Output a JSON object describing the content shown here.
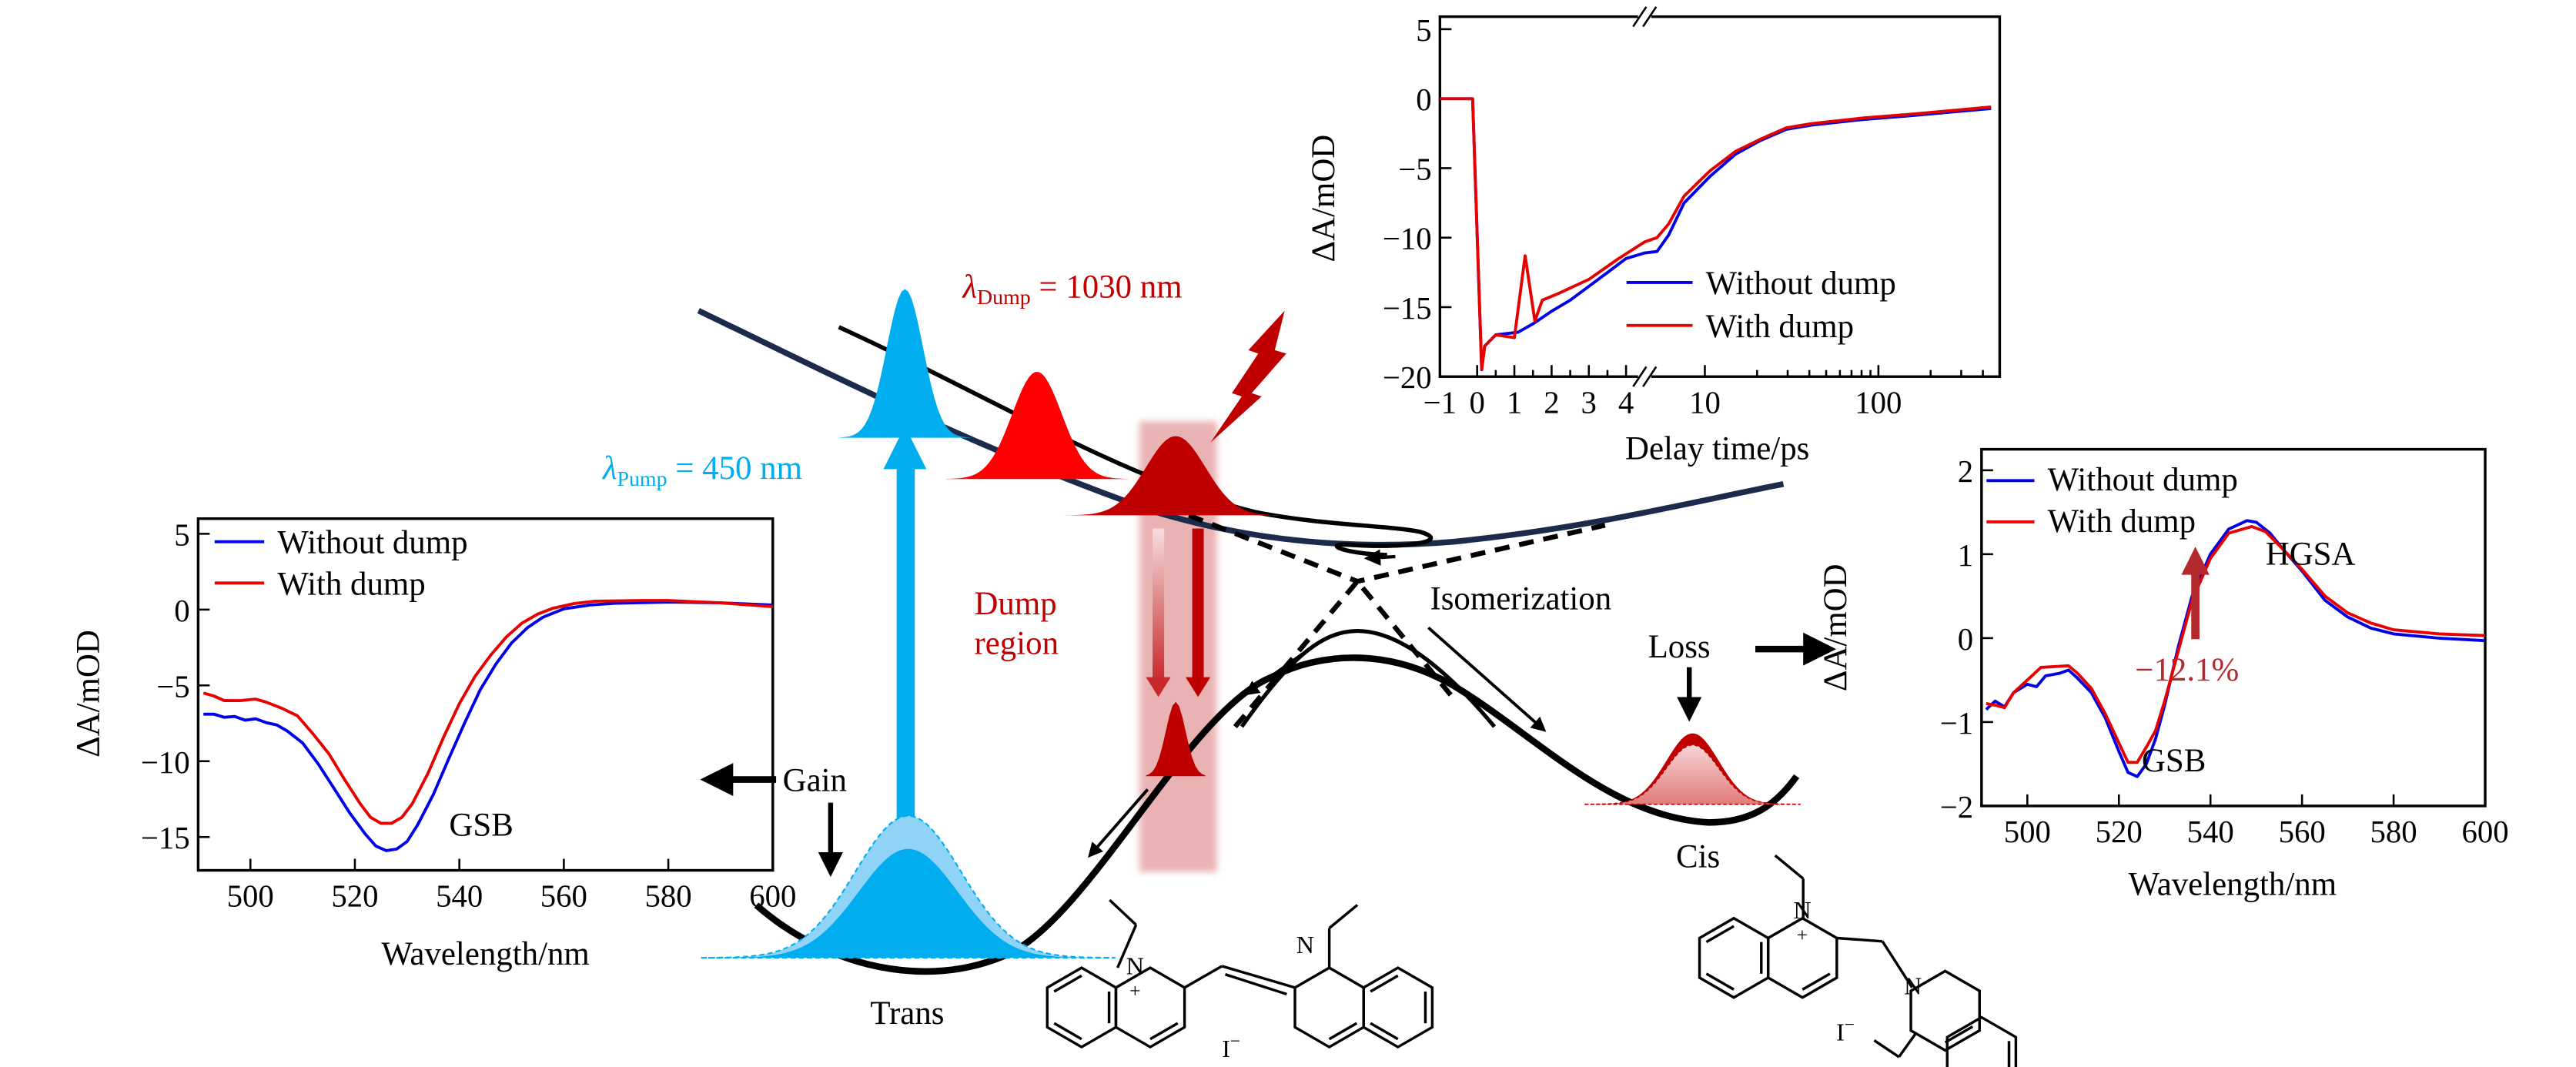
{
  "colors": {
    "blue_series": "#0000e6",
    "red_series": "#e60000",
    "pump": "#00aeef",
    "pump_light": "#8fd3f7",
    "dump": "#c00000",
    "dump_bright": "#ff0000",
    "dump_region": "#e8abab",
    "excited_curve": "#1c2b4b",
    "annotation_red": "#b5282c"
  },
  "legend": {
    "without": "Without dump",
    "with": "With dump"
  },
  "chart_data": [
    {
      "id": "left-spectrum",
      "type": "line",
      "xlabel": "Wavelength/nm",
      "ylabel": "ΔA/mOD",
      "xlim": [
        490,
        600
      ],
      "ylim": [
        -17.2,
        6
      ],
      "xticks": [
        500,
        520,
        540,
        560,
        580,
        600
      ],
      "xtick_labels": [
        "500",
        "520",
        "540",
        "560",
        "580",
        "600"
      ],
      "yticks": [
        5,
        0,
        -5,
        -10,
        -15
      ],
      "ytick_labels": [
        "5",
        "0",
        "−5",
        "−10",
        "−15"
      ],
      "legend_position": "top-left",
      "annotations": [
        "GSB"
      ],
      "series": [
        {
          "name": "Without dump",
          "color": "#0000e6",
          "x": [
            491,
            493,
            495,
            497,
            499,
            501,
            503,
            505,
            507,
            510,
            513,
            516,
            519,
            522,
            524,
            526,
            528,
            530,
            532,
            535,
            538,
            541,
            544,
            547,
            550,
            553,
            556,
            560,
            565,
            570,
            580,
            590,
            600
          ],
          "y": [
            -6.9,
            -6.9,
            -7.1,
            -7.05,
            -7.3,
            -7.2,
            -7.45,
            -7.6,
            -8.0,
            -8.8,
            -10.2,
            -11.8,
            -13.4,
            -14.8,
            -15.6,
            -15.9,
            -15.8,
            -15.3,
            -14.2,
            -12.2,
            -9.8,
            -7.5,
            -5.3,
            -3.6,
            -2.2,
            -1.2,
            -0.5,
            0.05,
            0.3,
            0.42,
            0.5,
            0.45,
            0.3
          ]
        },
        {
          "name": "With dump",
          "color": "#e60000",
          "x": [
            491,
            493,
            495,
            498,
            501,
            503,
            506,
            509,
            512,
            515,
            518,
            521,
            523,
            525,
            527,
            529,
            531,
            534,
            537,
            540,
            543,
            546,
            549,
            552,
            555,
            558,
            562,
            566,
            575,
            580,
            590,
            600
          ],
          "y": [
            -5.5,
            -5.7,
            -6.0,
            -6.0,
            -5.9,
            -6.1,
            -6.5,
            -7.0,
            -8.2,
            -9.5,
            -11.2,
            -12.8,
            -13.7,
            -14.1,
            -14.1,
            -13.7,
            -12.8,
            -10.8,
            -8.4,
            -6.2,
            -4.4,
            -3.0,
            -1.8,
            -0.9,
            -0.3,
            0.1,
            0.4,
            0.55,
            0.6,
            0.6,
            0.45,
            0.2
          ]
        }
      ]
    },
    {
      "id": "kinetics",
      "type": "line",
      "xlabel": "Delay time/ps",
      "ylabel": "ΔA/mOD",
      "x_scale": "broken axis: linear then log",
      "xlim_linear": [
        -1,
        4.5
      ],
      "xlim_log": [
        4.5,
        500
      ],
      "ylim": [
        -20,
        5.9
      ],
      "xticks": [
        -1,
        0,
        1,
        2,
        3,
        4,
        10,
        100
      ],
      "xtick_labels": [
        "−1",
        "0",
        "1",
        "2",
        "3",
        "4",
        "10",
        "100"
      ],
      "yticks": [
        5,
        0,
        -5,
        -10,
        -15,
        -20
      ],
      "ytick_labels": [
        "5",
        "0",
        "−5",
        "−10",
        "−15",
        "−20"
      ],
      "legend_position": "bottom-right",
      "series": [
        {
          "name": "Without dump",
          "color": "#0000e6",
          "x": [
            -1,
            -0.5,
            -0.12,
            0.12,
            0.2,
            0.5,
            1.1,
            1.5,
            2,
            2.5,
            3,
            3.5,
            4,
            4.5,
            5.3,
            6.2,
            7.6,
            10.7,
            15,
            21,
            29.5,
            41,
            81,
            160,
            446
          ],
          "y": [
            0,
            0,
            0,
            -19.5,
            -17.8,
            -17,
            -16.8,
            -16.2,
            -15.3,
            -14.5,
            -13.5,
            -12.5,
            -11.5,
            -11.1,
            -11,
            -9.8,
            -7.5,
            -5.6,
            -4,
            -3,
            -2.2,
            -1.9,
            -1.5,
            -1.2,
            -0.7
          ]
        },
        {
          "name": "With dump",
          "color": "#e60000",
          "x": [
            -1,
            -0.5,
            -0.12,
            0.12,
            0.2,
            0.5,
            1.0,
            1.29,
            1.55,
            1.75,
            2.2,
            3,
            3.8,
            4.5,
            5.3,
            6.2,
            7.6,
            10.7,
            15,
            21,
            29.5,
            41,
            81,
            160,
            446
          ],
          "y": [
            0,
            0,
            0,
            -19.5,
            -17.8,
            -17,
            -17.2,
            -11.3,
            -16,
            -14.5,
            -14,
            -13,
            -11.5,
            -10.3,
            -10,
            -9,
            -7,
            -5.2,
            -3.8,
            -2.9,
            -2.1,
            -1.8,
            -1.4,
            -1.1,
            -0.6
          ]
        }
      ]
    },
    {
      "id": "right-spectrum",
      "type": "line",
      "xlabel": "Wavelength/nm",
      "ylabel": "ΔA/mOD",
      "xlim": [
        490,
        600
      ],
      "ylim": [
        -2,
        2.25
      ],
      "xticks": [
        500,
        520,
        540,
        560,
        580,
        600
      ],
      "xtick_labels": [
        "500",
        "520",
        "540",
        "560",
        "580",
        "600"
      ],
      "yticks": [
        2,
        1,
        0,
        -1,
        -2
      ],
      "ytick_labels": [
        "2",
        "1",
        "0",
        "−1",
        "−2"
      ],
      "legend_position": "top-left",
      "annotations": [
        "HGSA",
        "GSB",
        "−12.1%"
      ],
      "series": [
        {
          "name": "Without dump",
          "color": "#0000e6",
          "x": [
            491,
            493,
            495,
            497,
            500,
            502,
            504,
            507,
            509,
            511,
            514,
            517,
            520,
            522,
            524,
            526,
            528,
            530,
            533,
            536,
            540,
            544,
            548,
            550,
            553,
            556,
            560,
            565,
            570,
            575,
            580,
            590,
            600
          ],
          "y": [
            -0.85,
            -0.75,
            -0.82,
            -0.65,
            -0.55,
            -0.58,
            -0.45,
            -0.42,
            -0.38,
            -0.48,
            -0.65,
            -0.95,
            -1.35,
            -1.6,
            -1.65,
            -1.5,
            -1.2,
            -0.8,
            -0.1,
            0.5,
            1.0,
            1.3,
            1.4,
            1.38,
            1.25,
            1.05,
            0.8,
            0.45,
            0.25,
            0.12,
            0.05,
            0.0,
            -0.03
          ]
        },
        {
          "name": "With dump",
          "color": "#e60000",
          "x": [
            491,
            493,
            495,
            497,
            500,
            503,
            506,
            509,
            511,
            514,
            517,
            520,
            522,
            524,
            526,
            528,
            530,
            533,
            536,
            540,
            544,
            549,
            552,
            556,
            560,
            565,
            570,
            575,
            580,
            590,
            600
          ],
          "y": [
            -0.78,
            -0.8,
            -0.83,
            -0.65,
            -0.5,
            -0.35,
            -0.34,
            -0.33,
            -0.42,
            -0.6,
            -0.9,
            -1.25,
            -1.48,
            -1.48,
            -1.3,
            -1.1,
            -0.75,
            -0.15,
            0.45,
            0.95,
            1.25,
            1.33,
            1.27,
            1.05,
            0.82,
            0.5,
            0.3,
            0.18,
            0.1,
            0.05,
            0.03
          ]
        }
      ]
    }
  ],
  "diagram": {
    "pump_lambda_symbol": "λ",
    "pump_sub": "Pump",
    "pump_value": " = 450 nm",
    "dump_lambda_symbol": "λ",
    "dump_sub": "Dump",
    "dump_value": " = 1030 nm",
    "dump_region_line1": "Dump",
    "dump_region_line2": "region",
    "gain": "Gain",
    "loss": "Loss",
    "isomerization": "Isomerization",
    "trans": "Trans",
    "cis": "Cis",
    "molecule": {
      "n": "N",
      "plus": "+",
      "iodide": "I",
      "minus": "−"
    }
  },
  "icons": {
    "lightning": "lightning-bolt-icon"
  }
}
